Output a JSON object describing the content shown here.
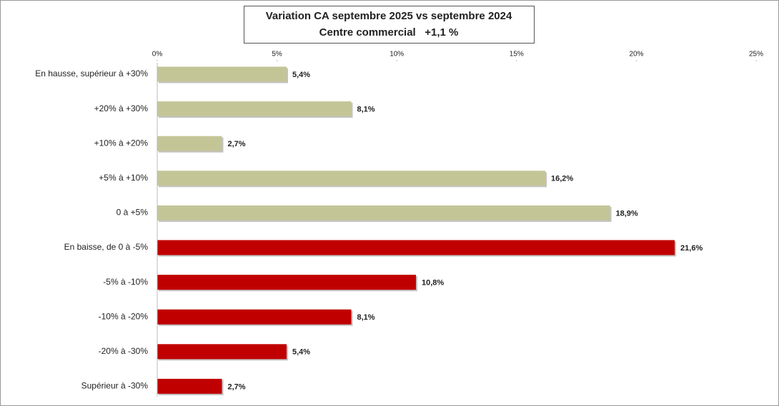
{
  "chart_data": {
    "type": "bar",
    "orientation": "horizontal",
    "title": "Variation CA septembre 2025 vs septembre 2024",
    "subtitle": "Centre commercial   +1,1 %",
    "categories": [
      "En hausse, supérieur à +30%",
      "+20% à +30%",
      "+10% à +20%",
      "+5% à +10%",
      "0 à +5%",
      "En baisse, de 0 à -5%",
      "-5% à -10%",
      "-10% à -20%",
      "-20% à -30%",
      "Supérieur à -30%"
    ],
    "values": [
      5.4,
      8.1,
      2.7,
      16.2,
      18.9,
      21.6,
      10.8,
      8.1,
      5.4,
      2.7
    ],
    "value_labels": [
      "5,4%",
      "8,1%",
      "2,7%",
      "16,2%",
      "18,9%",
      "21,6%",
      "10,8%",
      "8,1%",
      "5,4%",
      "2,7%"
    ],
    "colors": [
      "#c4c597",
      "#c4c597",
      "#c4c597",
      "#c4c597",
      "#c4c597",
      "#c00000",
      "#c00000",
      "#c00000",
      "#c00000",
      "#c00000"
    ],
    "xlim": [
      0,
      25
    ],
    "xticks": [
      {
        "value": 0,
        "label": "0%"
      },
      {
        "value": 5,
        "label": "5%"
      },
      {
        "value": 10,
        "label": "10%"
      },
      {
        "value": 15,
        "label": "15%"
      },
      {
        "value": 20,
        "label": "20%"
      },
      {
        "value": 25,
        "label": "25%"
      }
    ],
    "grid": false
  }
}
